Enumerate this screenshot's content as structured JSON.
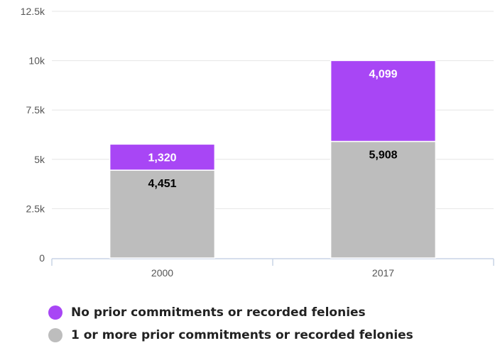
{
  "chart_data": {
    "type": "bar",
    "stacked": true,
    "categories": [
      "2000",
      "2017"
    ],
    "series": [
      {
        "name": "1 or more prior commitments or recorded felonies",
        "values": [
          4451,
          5908
        ],
        "labels": [
          "4,451",
          "5,908"
        ],
        "color": "#bdbdbd",
        "label_color": "#000000"
      },
      {
        "name": "No prior commitments or recorded felonies",
        "values": [
          1320,
          4099
        ],
        "labels": [
          "1,320",
          "4,099"
        ],
        "color": "#a846f5",
        "label_color": "#ffffff"
      }
    ],
    "ylim": [
      0,
      12500
    ],
    "yticks": [
      {
        "value": 0,
        "label": "0"
      },
      {
        "value": 2500,
        "label": "2.5k"
      },
      {
        "value": 5000,
        "label": "5k"
      },
      {
        "value": 7500,
        "label": "7.5k"
      },
      {
        "value": 10000,
        "label": "10k"
      },
      {
        "value": 12500,
        "label": "12.5k"
      }
    ],
    "grid": true,
    "legend_position": "bottom-left"
  },
  "legend": [
    {
      "label": "No prior commitments or recorded felonies",
      "color": "#a846f5"
    },
    {
      "label": "1 or more prior commitments or recorded felonies",
      "color": "#bdbdbd"
    }
  ]
}
